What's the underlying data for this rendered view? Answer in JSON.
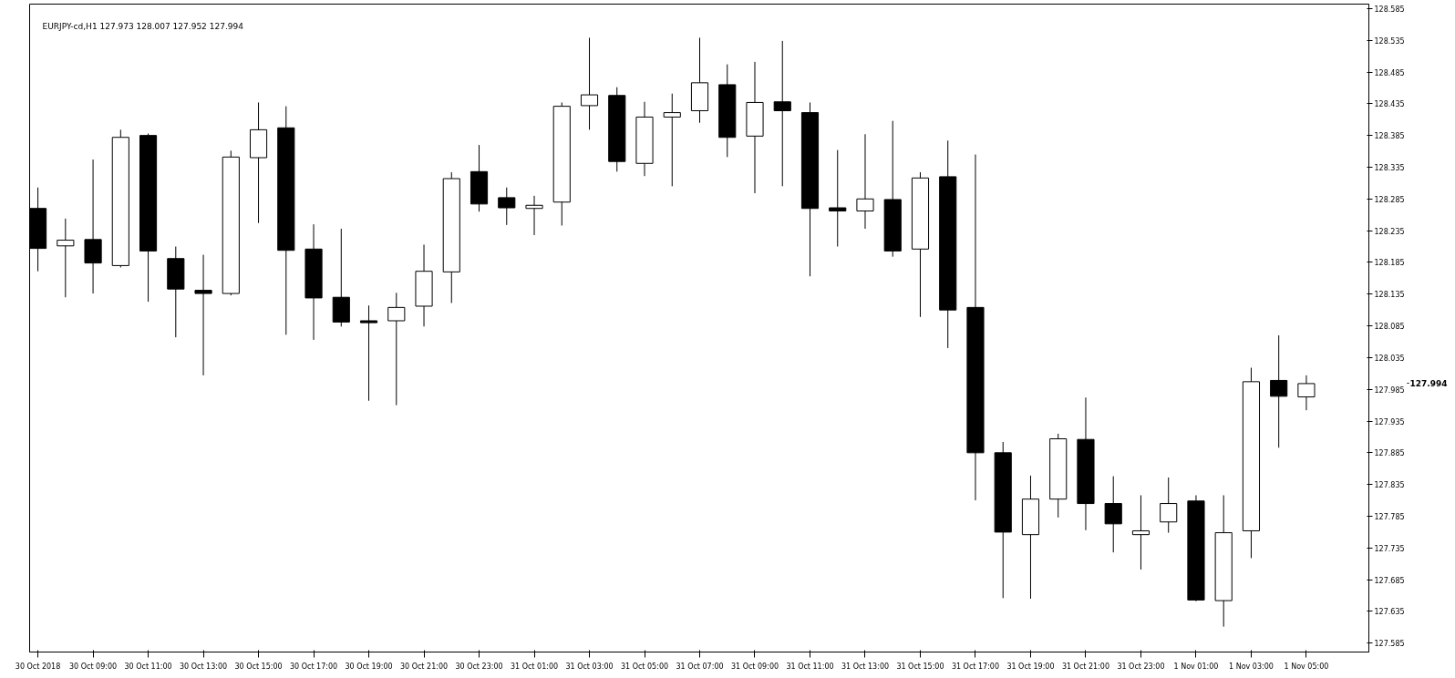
{
  "chart_data": {
    "type": "candlestick",
    "title": "EURJPY-cd,H1  127.973 128.007 127.952 127.994",
    "x": [
      "2018-10-30T07:00",
      "2018-10-30T08:00",
      "2018-10-30T09:00",
      "2018-10-30T10:00",
      "2018-10-30T11:00",
      "2018-10-30T12:00",
      "2018-10-30T13:00",
      "2018-10-30T14:00",
      "2018-10-30T15:00",
      "2018-10-30T16:00",
      "2018-10-30T17:00",
      "2018-10-30T18:00",
      "2018-10-30T19:00",
      "2018-10-30T20:00",
      "2018-10-30T21:00",
      "2018-10-30T22:00",
      "2018-10-30T23:00",
      "2018-10-31T00:00",
      "2018-10-31T01:00",
      "2018-10-31T02:00",
      "2018-10-31T03:00",
      "2018-10-31T04:00",
      "2018-10-31T05:00",
      "2018-10-31T06:00",
      "2018-10-31T07:00",
      "2018-10-31T08:00",
      "2018-10-31T09:00",
      "2018-10-31T10:00",
      "2018-10-31T11:00",
      "2018-10-31T12:00",
      "2018-10-31T13:00",
      "2018-10-31T14:00",
      "2018-10-31T15:00",
      "2018-10-31T16:00",
      "2018-10-31T17:00",
      "2018-10-31T18:00",
      "2018-10-31T19:00",
      "2018-10-31T20:00",
      "2018-10-31T21:00",
      "2018-10-31T22:00",
      "2018-10-31T23:00",
      "2018-11-01T00:00",
      "2018-11-01T01:00",
      "2018-11-01T02:00",
      "2018-11-01T03:00",
      "2018-11-01T04:00",
      "2018-11-01T05:00"
    ],
    "xlim": [
      "2018-10-30T06:42",
      "2018-11-01T07:16"
    ],
    "xticks": [
      {
        "value": "2018-10-30T07:00",
        "label": "30 Oct 2018"
      },
      {
        "value": "2018-10-30T09:00",
        "label": "30 Oct 09:00"
      },
      {
        "value": "2018-10-30T11:00",
        "label": "30 Oct 11:00"
      },
      {
        "value": "2018-10-30T13:00",
        "label": "30 Oct 13:00"
      },
      {
        "value": "2018-10-30T15:00",
        "label": "30 Oct 15:00"
      },
      {
        "value": "2018-10-30T17:00",
        "label": "30 Oct 17:00"
      },
      {
        "value": "2018-10-30T19:00",
        "label": "30 Oct 19:00"
      },
      {
        "value": "2018-10-30T21:00",
        "label": "30 Oct 21:00"
      },
      {
        "value": "2018-10-30T23:00",
        "label": "30 Oct 23:00"
      },
      {
        "value": "2018-10-31T01:00",
        "label": "31 Oct 01:00"
      },
      {
        "value": "2018-10-31T03:00",
        "label": "31 Oct 03:00"
      },
      {
        "value": "2018-10-31T05:00",
        "label": "31 Oct 05:00"
      },
      {
        "value": "2018-10-31T07:00",
        "label": "31 Oct 07:00"
      },
      {
        "value": "2018-10-31T09:00",
        "label": "31 Oct 09:00"
      },
      {
        "value": "2018-10-31T11:00",
        "label": "31 Oct 11:00"
      },
      {
        "value": "2018-10-31T13:00",
        "label": "31 Oct 13:00"
      },
      {
        "value": "2018-10-31T15:00",
        "label": "31 Oct 15:00"
      },
      {
        "value": "2018-10-31T17:00",
        "label": "31 Oct 17:00"
      },
      {
        "value": "2018-10-31T19:00",
        "label": "31 Oct 19:00"
      },
      {
        "value": "2018-10-31T21:00",
        "label": "31 Oct 21:00"
      },
      {
        "value": "2018-10-31T23:00",
        "label": "31 Oct 23:00"
      },
      {
        "value": "2018-11-01T01:00",
        "label": "1 Nov 01:00"
      },
      {
        "value": "2018-11-01T03:00",
        "label": "1 Nov 03:00"
      },
      {
        "value": "2018-11-01T05:00",
        "label": "1 Nov 05:00"
      }
    ],
    "ohlc": [
      [
        128.27,
        128.303,
        128.171,
        128.207
      ],
      [
        128.211,
        128.254,
        128.13,
        128.22
      ],
      [
        128.221,
        128.347,
        128.136,
        128.184
      ],
      [
        128.18,
        128.394,
        128.177,
        128.382
      ],
      [
        128.385,
        128.388,
        128.123,
        128.203
      ],
      [
        128.191,
        128.21,
        128.067,
        128.143
      ],
      [
        128.141,
        128.197,
        128.007,
        128.136
      ],
      [
        128.136,
        128.361,
        128.133,
        128.351
      ],
      [
        128.35,
        128.437,
        128.247,
        128.394
      ],
      [
        128.397,
        128.431,
        128.071,
        128.204
      ],
      [
        128.206,
        128.245,
        128.063,
        128.129
      ],
      [
        128.13,
        128.238,
        128.084,
        128.091
      ],
      [
        128.093,
        128.117,
        127.967,
        128.09
      ],
      [
        128.093,
        128.137,
        127.96,
        128.114
      ],
      [
        128.116,
        128.213,
        128.084,
        128.171
      ],
      [
        128.17,
        128.327,
        128.121,
        128.317
      ],
      [
        128.328,
        128.37,
        128.265,
        128.277
      ],
      [
        128.287,
        128.303,
        128.244,
        128.271
      ],
      [
        128.27,
        128.29,
        128.228,
        128.275
      ],
      [
        128.28,
        128.437,
        128.243,
        128.431
      ],
      [
        128.432,
        128.539,
        128.394,
        128.449
      ],
      [
        128.448,
        128.461,
        128.328,
        128.344
      ],
      [
        128.341,
        128.438,
        128.321,
        128.414
      ],
      [
        128.414,
        128.451,
        128.305,
        128.421
      ],
      [
        128.424,
        128.539,
        128.405,
        128.468
      ],
      [
        128.465,
        128.497,
        128.351,
        128.382
      ],
      [
        128.384,
        128.501,
        128.294,
        128.437
      ],
      [
        128.438,
        128.534,
        128.305,
        128.424
      ],
      [
        128.421,
        128.437,
        128.163,
        128.27
      ],
      [
        128.271,
        128.362,
        128.21,
        128.266
      ],
      [
        128.266,
        128.387,
        128.238,
        128.285
      ],
      [
        128.284,
        128.408,
        128.194,
        128.203
      ],
      [
        128.206,
        128.327,
        128.099,
        128.318
      ],
      [
        128.32,
        128.377,
        128.05,
        128.11
      ],
      [
        128.114,
        128.355,
        127.81,
        127.885
      ],
      [
        127.885,
        127.902,
        127.656,
        127.76
      ],
      [
        127.756,
        127.849,
        127.655,
        127.812
      ],
      [
        127.812,
        127.915,
        127.783,
        127.907
      ],
      [
        127.906,
        127.972,
        127.763,
        127.805
      ],
      [
        127.805,
        127.848,
        127.728,
        127.773
      ],
      [
        127.756,
        127.818,
        127.701,
        127.762
      ],
      [
        127.776,
        127.846,
        127.759,
        127.805
      ],
      [
        127.809,
        127.818,
        127.651,
        127.653
      ],
      [
        127.652,
        127.818,
        127.611,
        127.759
      ],
      [
        127.762,
        128.019,
        127.719,
        127.997
      ],
      [
        127.999,
        128.07,
        127.893,
        127.974
      ],
      [
        127.973,
        128.007,
        127.952,
        127.994
      ]
    ],
    "color": "#000000",
    "ylim": [
      127.571,
      128.592
    ],
    "yticks": [
      127.585,
      127.635,
      127.685,
      127.735,
      127.785,
      127.835,
      127.885,
      127.935,
      127.985,
      128.035,
      128.085,
      128.135,
      128.185,
      128.235,
      128.285,
      128.335,
      128.385,
      128.435,
      128.485,
      128.535,
      128.585
    ],
    "annotations": [
      "127.994"
    ],
    "grid": false
  }
}
